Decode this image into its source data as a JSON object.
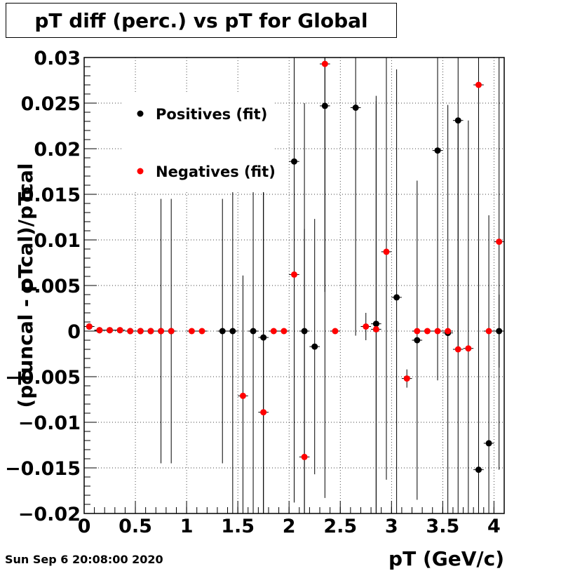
{
  "title": "pT diff (perc.) vs pT for Global",
  "timestamp": "Sun Sep  6 20:08:00 2020",
  "chart_data": {
    "type": "scatter",
    "title": "pT diff (perc.) vs pT for Global",
    "xlabel": "pT (GeV/c)",
    "ylabel": "(pTuncal - pTcal)/pTcal",
    "xlim": [
      0,
      4.1
    ],
    "ylim": [
      -0.02,
      0.03
    ],
    "x_ticks": [
      0,
      0.5,
      1,
      1.5,
      2,
      2.5,
      3,
      3.5,
      4
    ],
    "x_tick_labels": [
      "0",
      "0.5",
      "1",
      "1.5",
      "2",
      "2.5",
      "3",
      "3.5",
      "4"
    ],
    "y_ticks": [
      -0.02,
      -0.015,
      -0.01,
      -0.005,
      0,
      0.005,
      0.01,
      0.015,
      0.02,
      0.025,
      0.03
    ],
    "y_tick_labels": [
      "−0.02",
      "−0.015",
      "−0.01",
      "−0.005",
      "0",
      "0.005",
      "0.01",
      "0.015",
      "0.02",
      "0.025",
      "0.03"
    ],
    "grid": true,
    "legend_position": "top-left",
    "series": [
      {
        "name": "Positives (fit)",
        "color": "#000000",
        "points": [
          {
            "x": 0.05,
            "y": 0.0005,
            "err": 0.0003
          },
          {
            "x": 0.15,
            "y": 0.0001,
            "err": 0.0002
          },
          {
            "x": 0.25,
            "y": 0.0001,
            "err": 0.0002
          },
          {
            "x": 0.35,
            "y": 0.0001,
            "err": 0.0002
          },
          {
            "x": 0.45,
            "y": 0.0,
            "err": 0.0002
          },
          {
            "x": 0.55,
            "y": 0.0,
            "err": 0.0002
          },
          {
            "x": 0.65,
            "y": 0.0,
            "err": 0.0002
          },
          {
            "x": 0.75,
            "y": 0.0,
            "err": 0.0145
          },
          {
            "x": 0.85,
            "y": 0.0,
            "err": 0.0145
          },
          {
            "x": 1.35,
            "y": 0.0,
            "err": 0.0145
          },
          {
            "x": 1.45,
            "y": 0.0,
            "err": 0.025
          },
          {
            "x": 1.65,
            "y": 0.0,
            "err": 0.025
          },
          {
            "x": 1.75,
            "y": -0.0007,
            "err": 0.025
          },
          {
            "x": 2.05,
            "y": 0.0186,
            "err": 0.0267
          },
          {
            "x": 2.15,
            "y": 0.0,
            "err": 0.025
          },
          {
            "x": 2.25,
            "y": -0.0017,
            "err": 0.014
          },
          {
            "x": 2.35,
            "y": 0.0247,
            "err": 0.043
          },
          {
            "x": 2.65,
            "y": 0.0245,
            "err": 0.025
          },
          {
            "x": 2.85,
            "y": 0.0008,
            "err": 0.025
          },
          {
            "x": 3.05,
            "y": 0.0037,
            "err": 0.025
          },
          {
            "x": 3.25,
            "y": -0.001,
            "err": 0.0175
          },
          {
            "x": 3.45,
            "y": 0.0198,
            "err": 0.0252
          },
          {
            "x": 3.55,
            "y": -0.0002,
            "err": 0.025
          },
          {
            "x": 3.65,
            "y": 0.0231,
            "err": 0.025
          },
          {
            "x": 3.85,
            "y": -0.0152,
            "err": 0.025
          },
          {
            "x": 3.95,
            "y": -0.0123,
            "err": 0.025
          },
          {
            "x": 4.05,
            "y": 0.0,
            "err": 0.004
          }
        ]
      },
      {
        "name": "Negatives (fit)",
        "color": "#ff0000",
        "points": [
          {
            "x": 0.05,
            "y": 0.0005,
            "err": 0.0003
          },
          {
            "x": 0.15,
            "y": 0.0001,
            "err": 0.0002
          },
          {
            "x": 0.25,
            "y": 0.0001,
            "err": 0.0002
          },
          {
            "x": 0.35,
            "y": 0.0001,
            "err": 0.0002
          },
          {
            "x": 0.45,
            "y": 0.0,
            "err": 0.0002
          },
          {
            "x": 0.55,
            "y": 0.0,
            "err": 0.0002
          },
          {
            "x": 0.65,
            "y": 0.0,
            "err": 0.0002
          },
          {
            "x": 0.75,
            "y": 0.0,
            "err": 0.0002
          },
          {
            "x": 0.85,
            "y": 0.0,
            "err": 0.0002
          },
          {
            "x": 1.05,
            "y": 0.0,
            "err": 0.0002
          },
          {
            "x": 1.15,
            "y": 0.0,
            "err": 0.0002
          },
          {
            "x": 1.55,
            "y": -0.0071,
            "err": 0.0132
          },
          {
            "x": 1.75,
            "y": -0.0089,
            "err": 0.025
          },
          {
            "x": 1.85,
            "y": 0.0,
            "err": 0.0002
          },
          {
            "x": 1.95,
            "y": 0.0,
            "err": 0.0002
          },
          {
            "x": 2.05,
            "y": 0.0062,
            "err": 0.025
          },
          {
            "x": 2.15,
            "y": -0.0138,
            "err": 0.025
          },
          {
            "x": 2.35,
            "y": 0.0293,
            "err": 0.025
          },
          {
            "x": 2.45,
            "y": 0.0,
            "err": 0.0002
          },
          {
            "x": 2.75,
            "y": 0.0005,
            "err": 0.0015
          },
          {
            "x": 2.85,
            "y": 0.0002,
            "err": 0.025
          },
          {
            "x": 2.95,
            "y": 0.0087,
            "err": 0.025
          },
          {
            "x": 3.15,
            "y": -0.0052,
            "err": 0.001
          },
          {
            "x": 3.25,
            "y": 0.0,
            "err": 0.0002
          },
          {
            "x": 3.35,
            "y": 0.0,
            "err": 0.0002
          },
          {
            "x": 3.45,
            "y": 0.0,
            "err": 0.0002
          },
          {
            "x": 3.55,
            "y": 0.0,
            "err": 0.0002
          },
          {
            "x": 3.65,
            "y": -0.002,
            "err": 0.025
          },
          {
            "x": 3.75,
            "y": -0.0019,
            "err": 0.025
          },
          {
            "x": 3.85,
            "y": 0.027,
            "err": 0.025
          },
          {
            "x": 3.95,
            "y": 0.0,
            "err": 0.0002
          },
          {
            "x": 4.05,
            "y": 0.0098,
            "err": 0.025
          }
        ]
      }
    ]
  }
}
